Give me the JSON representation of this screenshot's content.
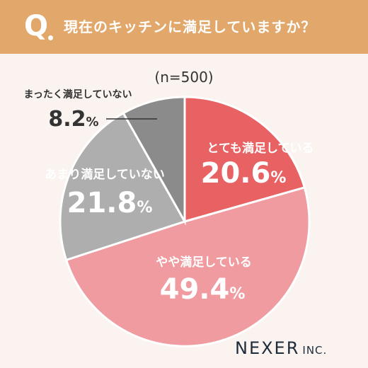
{
  "header": {
    "q_mark": "Q",
    "question": "現在のキッチンに満足していますか？"
  },
  "sample_label": "(n=500)",
  "chart_data": {
    "type": "pie",
    "title": "現在のキッチンに満足していますか？",
    "subtitle": "(n=500)",
    "unit": "%",
    "slices": [
      {
        "label": "とても満足している",
        "value": 20.6,
        "color": "#e86264"
      },
      {
        "label": "やや満足している",
        "value": 49.4,
        "color": "#f09ba0"
      },
      {
        "label": "あまり満足していない",
        "value": 21.8,
        "color": "#aeaeaf"
      },
      {
        "label": "まったく満足していない",
        "value": 8.2,
        "color": "#8b8b8c"
      }
    ]
  },
  "brand": {
    "name": "NEXER",
    "suffix": "INC."
  }
}
